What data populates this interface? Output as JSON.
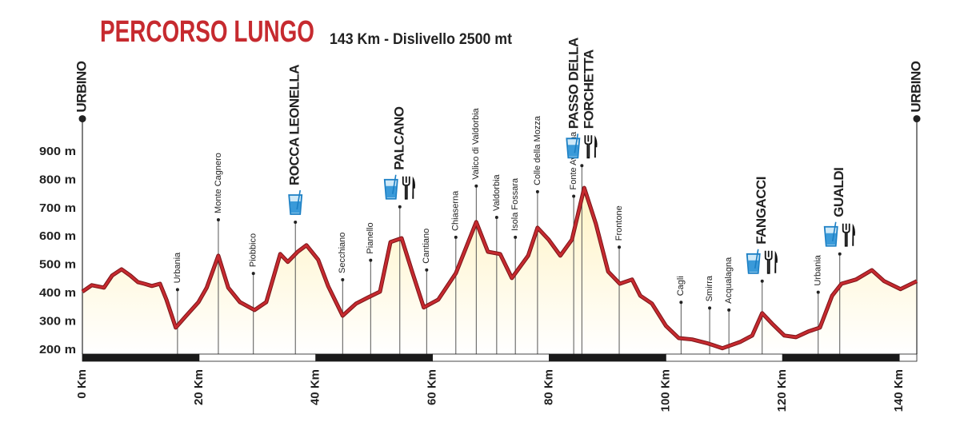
{
  "chart_data": {
    "type": "elevation-profile",
    "title": "PERCORSO LUNGO",
    "subtitle": "143 Km - Dislivello 2500 mt",
    "x": [
      0,
      1.6,
      3.7,
      5.1,
      6.7,
      8.2,
      9.5,
      10.6,
      11.9,
      13.3,
      14.4,
      16,
      17.8,
      19.9,
      21.3,
      23.3,
      25,
      27,
      29.5,
      31.5,
      33.9,
      35.2,
      36.9,
      38.4,
      40.4,
      42.1,
      44.6,
      46.9,
      49,
      51,
      52.8,
      54.7,
      56.5,
      58.5,
      61,
      64,
      67.5,
      69.5,
      71.6,
      73.6,
      76.4,
      78,
      79.9,
      81.9,
      83.9,
      86,
      88,
      90.1,
      92.1,
      94.2,
      95.6,
      97.6,
      100,
      102.2,
      104.5,
      107.2,
      109.7,
      112.7,
      114.8,
      116.5,
      118.2,
      120.3,
      122.3,
      124.4,
      126.4,
      128.5,
      130.1,
      132.6,
      135.3,
      137.4,
      140.2,
      143
    ],
    "values": [
      406,
      429,
      420,
      463,
      485,
      463,
      440,
      434,
      426,
      434,
      378,
      279,
      321,
      369,
      420,
      533,
      420,
      369,
      341,
      369,
      539,
      511,
      547,
      570,
      519,
      426,
      321,
      364,
      386,
      406,
      581,
      595,
      477,
      350,
      378,
      471,
      652,
      547,
      539,
      454,
      533,
      632,
      590,
      533,
      590,
      773,
      646,
      477,
      434,
      449,
      392,
      364,
      285,
      242,
      237,
      223,
      206,
      228,
      251,
      330,
      293,
      251,
      245,
      265,
      279,
      392,
      434,
      449,
      482,
      443,
      415,
      443
    ],
    "color": "#c62a2f",
    "fill": "#fff8d6",
    "xlim": [
      0,
      143
    ],
    "ylim": [
      160,
      1000
    ],
    "xticks": [
      {
        "value": 0,
        "label": "0 Km"
      },
      {
        "value": 20,
        "label": "20 Km"
      },
      {
        "value": 40,
        "label": "40 Km"
      },
      {
        "value": 60,
        "label": "60 Km"
      },
      {
        "value": 80,
        "label": "80 Km"
      },
      {
        "value": 100,
        "label": "100 Km"
      },
      {
        "value": 120,
        "label": "120 Km"
      },
      {
        "value": 140,
        "label": "140 Km"
      }
    ],
    "yticks": [
      {
        "value": 200,
        "label": "200 m"
      },
      {
        "value": 300,
        "label": "300 m"
      },
      {
        "value": 400,
        "label": "400 m"
      },
      {
        "value": 500,
        "label": "500 m"
      },
      {
        "value": 600,
        "label": "600 m"
      },
      {
        "value": 700,
        "label": "700 m"
      },
      {
        "value": 800,
        "label": "800 m"
      },
      {
        "value": 900,
        "label": "900 m"
      }
    ],
    "waypoints": [
      {
        "lines": [
          "URBINO"
        ],
        "km": 0,
        "kind": "endpoint"
      },
      {
        "lines": [
          "Urbania"
        ],
        "km": 16.3,
        "kind": "minor"
      },
      {
        "lines": [
          "Monte Cagnero"
        ],
        "km": 23.3,
        "kind": "minor"
      },
      {
        "lines": [
          "Piobbico"
        ],
        "km": 29.3,
        "kind": "minor"
      },
      {
        "lines": [
          "ROCCA LEONELLA"
        ],
        "km": 36.5,
        "kind": "major",
        "water": true
      },
      {
        "lines": [
          "Secchiano"
        ],
        "km": 44.6,
        "kind": "minor"
      },
      {
        "lines": [
          "Pianello"
        ],
        "km": 49.4,
        "kind": "minor"
      },
      {
        "lines": [
          "PALCANO"
        ],
        "km": 54.4,
        "kind": "major",
        "water": true,
        "food": true
      },
      {
        "lines": [
          "Cantiano"
        ],
        "km": 59,
        "kind": "minor"
      },
      {
        "lines": [
          "Chiaserna"
        ],
        "km": 64,
        "kind": "minor"
      },
      {
        "lines": [
          "Valico di Valdorbia"
        ],
        "km": 67.5,
        "kind": "minor"
      },
      {
        "lines": [
          "Valdorbia"
        ],
        "km": 71,
        "kind": "minor"
      },
      {
        "lines": [
          "Isola Fossara"
        ],
        "km": 74.2,
        "kind": "minor"
      },
      {
        "lines": [
          "Colle della Mozza"
        ],
        "km": 78,
        "kind": "minor"
      },
      {
        "lines": [
          "Fonte Avellana"
        ],
        "km": 84.2,
        "kind": "minor"
      },
      {
        "lines": [
          "PASSO DELLA",
          "FORCHETTA"
        ],
        "km": 85.6,
        "kind": "major",
        "water": true,
        "food": true
      },
      {
        "lines": [
          "Frontone"
        ],
        "km": 92,
        "kind": "minor"
      },
      {
        "lines": [
          "Cagli"
        ],
        "km": 102.6,
        "kind": "minor"
      },
      {
        "lines": [
          "Smirra"
        ],
        "km": 107.5,
        "kind": "minor"
      },
      {
        "lines": [
          "Acqualagna"
        ],
        "km": 110.8,
        "kind": "minor"
      },
      {
        "lines": [
          "FANGACCI"
        ],
        "km": 116.5,
        "kind": "major",
        "water": true,
        "food": true
      },
      {
        "lines": [
          "Urbania"
        ],
        "km": 126.1,
        "kind": "minor"
      },
      {
        "lines": [
          "GUALDI"
        ],
        "km": 129.8,
        "kind": "major",
        "water": true,
        "food": true
      },
      {
        "lines": [
          "URBINO"
        ],
        "km": 143,
        "kind": "endpoint"
      }
    ]
  }
}
